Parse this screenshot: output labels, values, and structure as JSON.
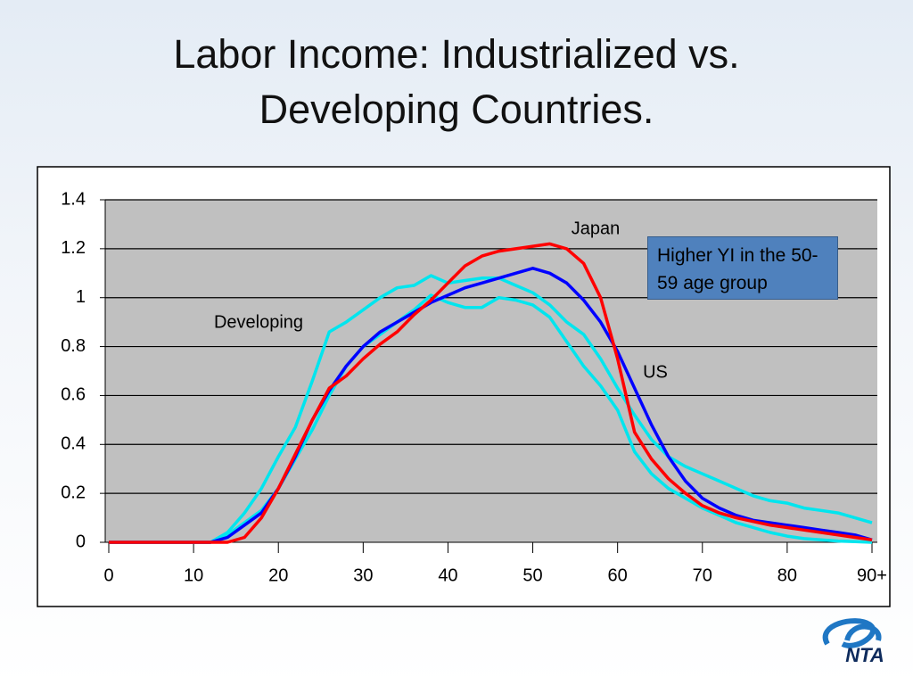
{
  "title": "Labor Income: Industrialized vs. Developing Countries.",
  "logo": "NTA",
  "chart_data": {
    "type": "line",
    "note": "Higher YI in the 50-59 age group",
    "x": [
      0,
      10,
      12,
      14,
      16,
      18,
      20,
      22,
      24,
      26,
      28,
      30,
      32,
      34,
      36,
      38,
      40,
      42,
      44,
      46,
      48,
      50,
      52,
      54,
      56,
      58,
      60,
      62,
      64,
      66,
      68,
      70,
      72,
      74,
      76,
      78,
      80,
      82,
      84,
      86,
      88,
      90
    ],
    "series": [
      {
        "name": "Developing",
        "color": "#00e5ee",
        "values": [
          0,
          0,
          0,
          0.04,
          0.12,
          0.22,
          0.35,
          0.47,
          0.66,
          0.86,
          0.9,
          0.95,
          1.0,
          1.04,
          1.05,
          1.09,
          1.06,
          1.07,
          1.08,
          1.08,
          1.05,
          1.02,
          0.97,
          0.9,
          0.85,
          0.75,
          0.63,
          0.52,
          0.42,
          0.35,
          0.31,
          0.28,
          0.25,
          0.22,
          0.19,
          0.17,
          0.16,
          0.14,
          0.13,
          0.12,
          0.1,
          0.08
        ]
      },
      {
        "name": "Developing",
        "color": "#00e5ee",
        "values": [
          0,
          0,
          0,
          0.03,
          0.08,
          0.13,
          0.22,
          0.34,
          0.46,
          0.6,
          0.72,
          0.8,
          0.85,
          0.9,
          0.95,
          1.01,
          0.98,
          0.96,
          0.96,
          1.0,
          0.99,
          0.97,
          0.92,
          0.82,
          0.72,
          0.64,
          0.54,
          0.37,
          0.28,
          0.22,
          0.18,
          0.14,
          0.11,
          0.08,
          0.06,
          0.04,
          0.025,
          0.015,
          0.01,
          0.005,
          0.003,
          0
        ]
      },
      {
        "name": "US",
        "color": "#0000ff",
        "values": [
          0,
          0,
          0,
          0.02,
          0.07,
          0.12,
          0.22,
          0.35,
          0.5,
          0.62,
          0.72,
          0.8,
          0.86,
          0.9,
          0.94,
          0.98,
          1.01,
          1.04,
          1.06,
          1.08,
          1.1,
          1.12,
          1.1,
          1.06,
          0.99,
          0.9,
          0.78,
          0.63,
          0.48,
          0.35,
          0.25,
          0.18,
          0.14,
          0.11,
          0.09,
          0.08,
          0.07,
          0.06,
          0.05,
          0.04,
          0.03,
          0.01
        ]
      },
      {
        "name": "Japan",
        "color": "#ff0000",
        "values": [
          0,
          0,
          0,
          0,
          0.02,
          0.1,
          0.22,
          0.36,
          0.5,
          0.63,
          0.68,
          0.75,
          0.81,
          0.86,
          0.93,
          0.99,
          1.06,
          1.13,
          1.17,
          1.19,
          1.2,
          1.21,
          1.22,
          1.2,
          1.14,
          1.0,
          0.75,
          0.45,
          0.34,
          0.26,
          0.2,
          0.15,
          0.12,
          0.1,
          0.085,
          0.07,
          0.06,
          0.05,
          0.04,
          0.03,
          0.02,
          0.01
        ]
      }
    ],
    "xlim": [
      0,
      90
    ],
    "xticks": [
      0,
      10,
      20,
      30,
      40,
      50,
      60,
      70,
      80,
      {
        "value": 90,
        "label": "90+"
      }
    ],
    "ylim": [
      0,
      1.4
    ],
    "yticks": [
      0,
      0.2,
      0.4,
      0.6,
      0.8,
      1,
      1.2,
      1.4
    ],
    "grid": true
  }
}
